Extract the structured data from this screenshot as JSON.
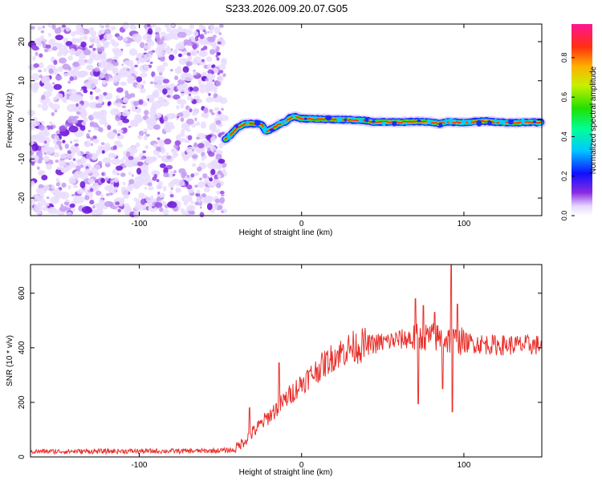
{
  "title": "S233.2026.009.20.07.G05",
  "chart_data": [
    {
      "type": "heatmap",
      "name": "spectrogram",
      "xlabel": "Height of straight line (km)",
      "ylabel": "Frequency (Hz)",
      "xlim": [
        -167,
        148
      ],
      "ylim": [
        -24.5,
        24.5
      ],
      "xticks": [
        -100,
        0,
        100
      ],
      "yticks": [
        -20,
        -10,
        0,
        10,
        20
      ],
      "noise_region_x": [
        -167,
        -47
      ],
      "ridge": {
        "x": [
          -47,
          -44,
          -40,
          -35,
          -30,
          -27,
          -24,
          -22,
          -20,
          -17,
          -14,
          -10,
          -7,
          -4,
          0,
          10,
          20,
          30,
          40,
          44,
          50,
          60,
          70,
          80,
          85,
          90,
          100,
          110,
          115,
          120,
          130,
          140,
          148
        ],
        "freq": [
          -5,
          -4,
          -2.2,
          -1,
          -1,
          -1,
          -1.5,
          -3,
          -2.6,
          -2,
          -1.2,
          -0.5,
          0.5,
          0.8,
          0.3,
          0.2,
          0.1,
          0,
          -0.2,
          -0.6,
          -0.5,
          -0.6,
          -0.4,
          -0.6,
          -1,
          -0.5,
          -0.7,
          -0.4,
          -0.3,
          -0.6,
          -0.8,
          -0.6,
          -0.7
        ]
      },
      "colorbar": {
        "label": "Normalized spectral amplitude",
        "ticks": [
          "0.0",
          "0.2",
          "0.4",
          "0.6",
          "0.8"
        ],
        "range": [
          0,
          0.97
        ]
      }
    },
    {
      "type": "line",
      "name": "snr",
      "xlabel": "Height of straight line (km)",
      "ylabel": "SNR (10 * v/v)",
      "xlim": [
        -167,
        148
      ],
      "ylim": [
        0,
        705
      ],
      "xticks": [
        -100,
        0,
        100
      ],
      "yticks": [
        0,
        200,
        400,
        600
      ],
      "color": "#e8302b",
      "trend": {
        "x": [
          -167,
          -60,
          -42,
          -35,
          -20,
          0,
          20,
          30,
          40,
          60,
          80,
          100,
          120,
          148
        ],
        "snr": [
          20,
          22,
          25,
          60,
          150,
          270,
          370,
          400,
          410,
          430,
          440,
          420,
          410,
          410
        ]
      },
      "spikes": [
        {
          "x": -32,
          "snr": 180
        },
        {
          "x": -14,
          "snr": 345
        },
        {
          "x": 70,
          "snr": 580
        },
        {
          "x": 72,
          "snr": 195
        },
        {
          "x": 75,
          "snr": 555
        },
        {
          "x": 82,
          "snr": 530
        },
        {
          "x": 87,
          "snr": 250
        },
        {
          "x": 92,
          "snr": 705
        },
        {
          "x": 93,
          "snr": 165
        },
        {
          "x": 96,
          "snr": 560
        }
      ]
    }
  ]
}
